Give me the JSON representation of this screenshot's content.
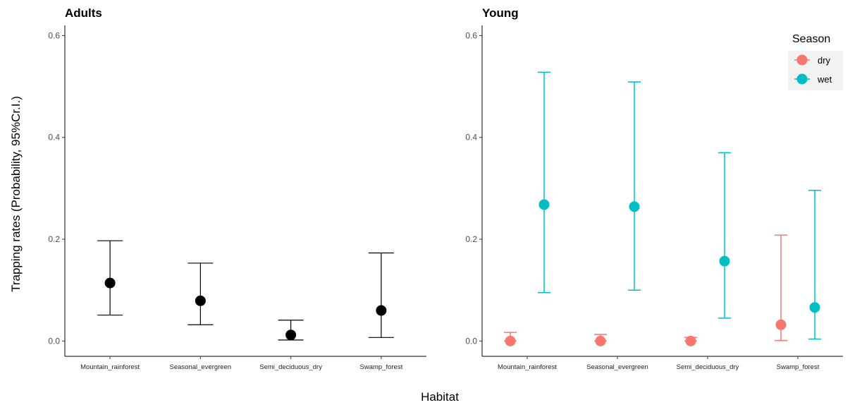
{
  "chart_data": [
    {
      "type": "scatter",
      "title": "Adults",
      "xlabel": "Habitat",
      "ylabel": "Trapping rates (Probability, 95%Cr.I.)",
      "categories": [
        "Mountain_rainforest",
        "Seasonal_evergreen",
        "Semi_deciduous_dry",
        "Swamp_forest"
      ],
      "ylim": [
        -0.03,
        0.62
      ],
      "yticks": [
        "0.0",
        "0.2",
        "0.4",
        "0.6"
      ],
      "series": [
        {
          "color": "#000000",
          "values": [
            0.114,
            0.079,
            0.012,
            0.06
          ],
          "lower": [
            0.051,
            0.032,
            0.002,
            0.007
          ],
          "upper": [
            0.197,
            0.153,
            0.041,
            0.173
          ]
        }
      ],
      "grid": false
    },
    {
      "type": "scatter",
      "title": "Young",
      "categories": [
        "Mountain_rainforest",
        "Seasonal_evergreen",
        "Semi_deciduous_dry",
        "Swamp_forest"
      ],
      "ylim": [
        -0.03,
        0.62
      ],
      "yticks": [
        "0.0",
        "0.2",
        "0.4",
        "0.6"
      ],
      "legend": {
        "title": "Season",
        "position": "top-right"
      },
      "series": [
        {
          "name": "dry",
          "color": "#F8766D",
          "values": [
            0.0,
            0.0,
            0.0,
            0.032
          ],
          "lower": [
            0.0,
            0.0,
            0.0,
            0.001
          ],
          "upper": [
            0.017,
            0.013,
            0.007,
            0.208
          ]
        },
        {
          "name": "wet",
          "color": "#00BFC4",
          "values": [
            0.268,
            0.264,
            0.157,
            0.066
          ],
          "lower": [
            0.095,
            0.1,
            0.045,
            0.004
          ],
          "upper": [
            0.528,
            0.509,
            0.37,
            0.296
          ]
        }
      ],
      "grid": false
    }
  ]
}
